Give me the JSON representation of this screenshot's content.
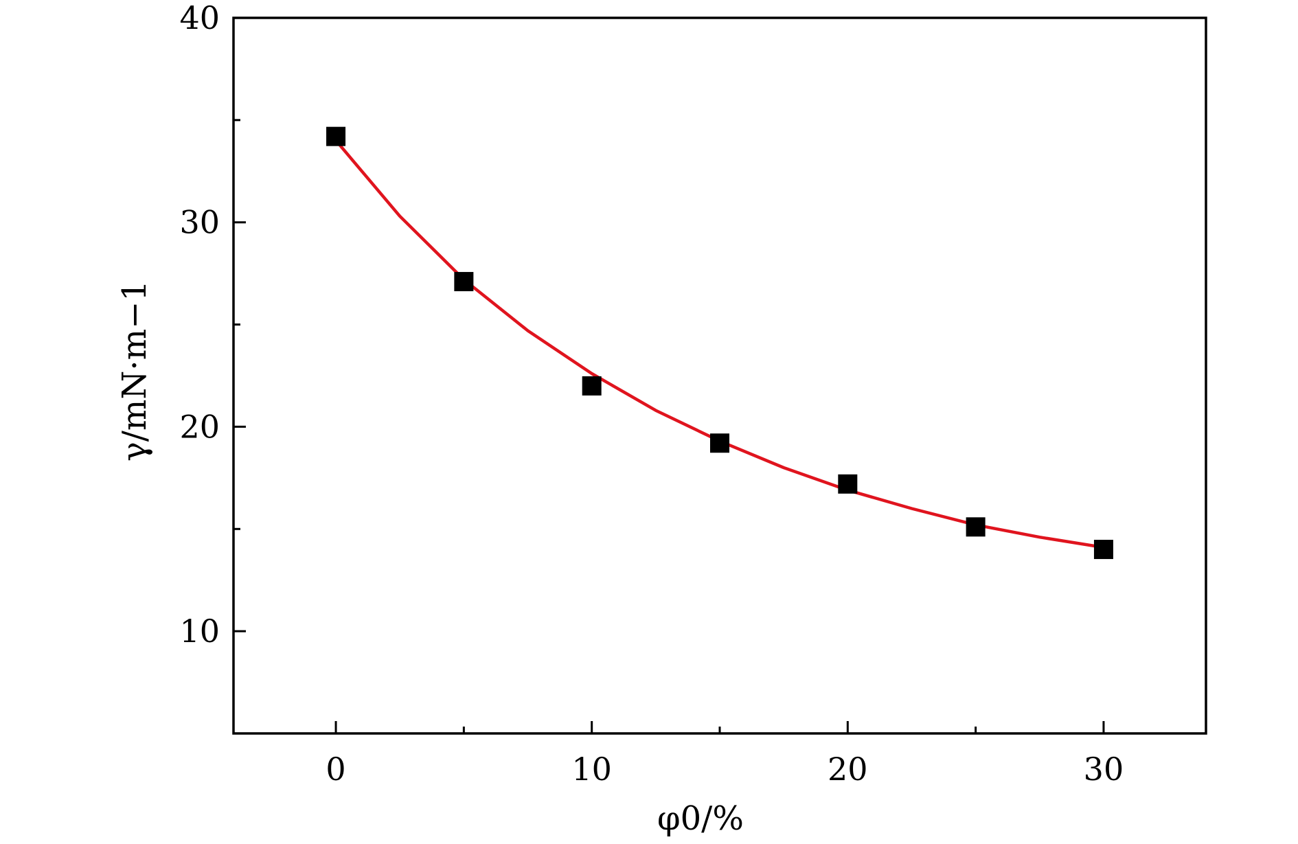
{
  "chart_data": {
    "type": "scatter",
    "xlabel": "φ0/%",
    "ylabel": "γ/mN·m−1",
    "xlim": [
      -4,
      34
    ],
    "ylim": [
      5,
      40
    ],
    "xticks": [
      0,
      10,
      20,
      30
    ],
    "yticks": [
      10,
      20,
      30,
      40
    ],
    "xticks_minor": [
      5,
      15,
      25
    ],
    "yticks_minor": [
      15,
      25,
      35
    ],
    "grid": false,
    "series": [
      {
        "type": "scatter",
        "marker": "square",
        "color": "#000000",
        "x": [
          0,
          5,
          10,
          15,
          20,
          25,
          30
        ],
        "y": [
          34.2,
          27.1,
          22.0,
          19.2,
          17.2,
          15.1,
          14.0
        ]
      },
      {
        "type": "line",
        "color": "#e0141e",
        "x": [
          0,
          2.5,
          5,
          7.5,
          10,
          12.5,
          15,
          17.5,
          20,
          22.5,
          25,
          27.5,
          30
        ],
        "y": [
          34.0,
          30.3,
          27.2,
          24.7,
          22.6,
          20.8,
          19.3,
          18.0,
          16.9,
          16.0,
          15.2,
          14.6,
          14.1
        ]
      }
    ]
  }
}
